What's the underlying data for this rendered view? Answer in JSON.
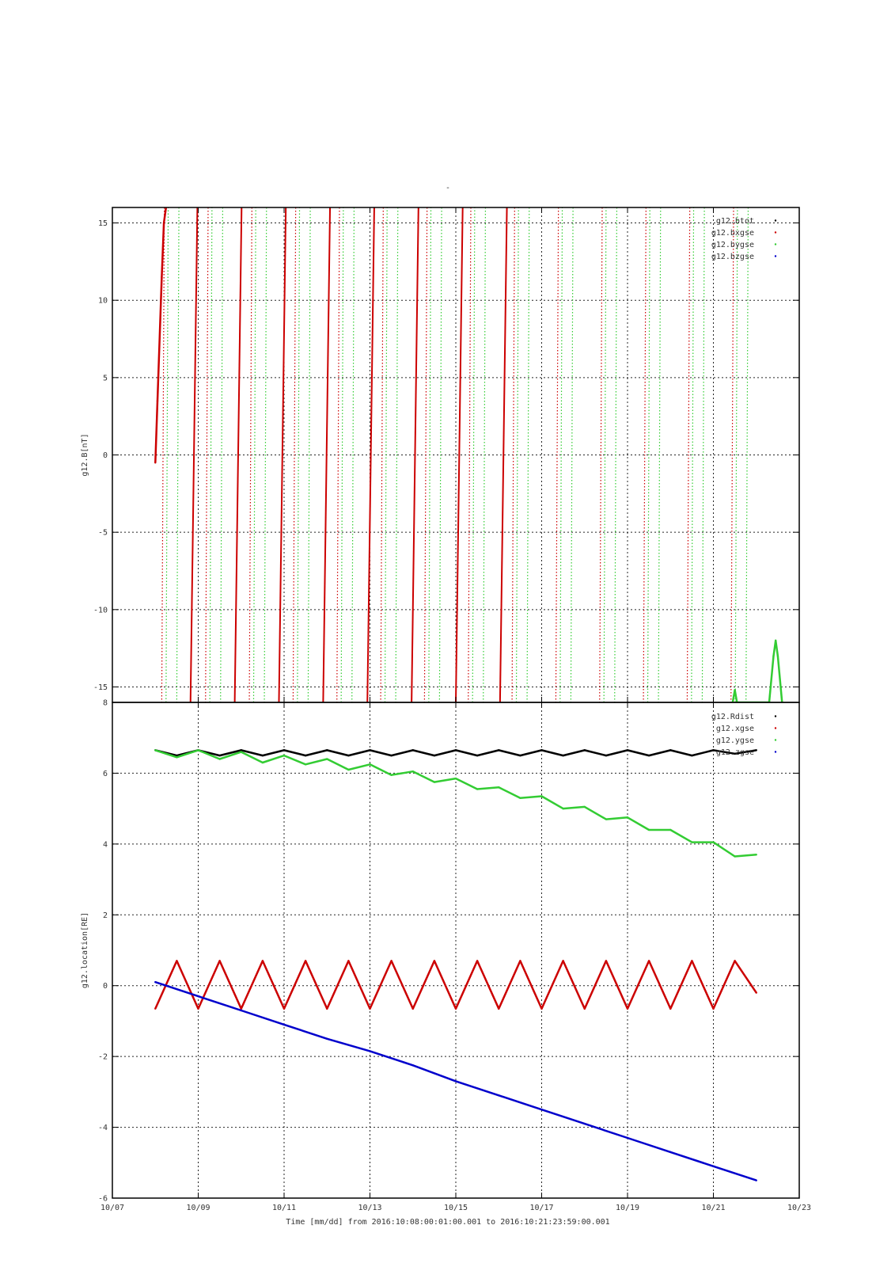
{
  "figure": {
    "top_title": "-",
    "time_label": "Time [mm/dd]  from 2016:10:08:00:01:00.001  to  2016:10:21:23:59:00.001",
    "x_ticks": [
      "10/07",
      "10/09",
      "10/11",
      "10/13",
      "10/15",
      "10/17",
      "10/19",
      "10/21",
      "10/23"
    ]
  },
  "chart_data": [
    {
      "type": "scatter",
      "title": "",
      "ylabel": "g12.B[nT]",
      "xlabel": "",
      "x_unit": "days since 2016-10-07",
      "xlim": [
        0,
        16
      ],
      "ylim": [
        -16,
        16
      ],
      "y_ticks": [
        "15",
        "10",
        "5",
        "0",
        "-5",
        "-10",
        "-15"
      ],
      "y_tick_values": [
        15,
        10,
        5,
        0,
        -5,
        -10,
        -15
      ],
      "grid": true,
      "legend_placement": "top-right",
      "series": [
        {
          "name": "g12.btot",
          "color": "#000000",
          "wraps": false,
          "x": [],
          "y": []
        },
        {
          "name": "g12.bxgse",
          "color": "#cc0000",
          "wraps": true,
          "dotted": false,
          "x": [
            1.0,
            1.05,
            1.1,
            1.15,
            1.2,
            1.25
          ],
          "y": [
            -0.5,
            3.5,
            7.5,
            11.5,
            15.0,
            16.0
          ]
        },
        {
          "name": "g12.bygse",
          "color": "#33cc33",
          "wraps": true,
          "x": [
            14.45,
            14.5,
            14.55,
            15.3,
            15.4,
            15.45,
            15.5,
            15.6
          ],
          "y": [
            -16.0,
            -15.2,
            -16.0,
            -16.0,
            -13.0,
            -12.0,
            -13.0,
            -16.0
          ]
        },
        {
          "name": "g12.bzgse",
          "color": "#0000cc",
          "wraps": false,
          "x": [],
          "y": []
        }
      ]
    },
    {
      "type": "line",
      "title": "",
      "ylabel": "g12.location[RE]",
      "xlabel": "Time [mm/dd]  from 2016:10:08:00:01:00.001  to  2016:10:21:23:59:00.001",
      "x_unit": "days since 2016-10-07",
      "xlim": [
        0,
        16
      ],
      "ylim": [
        -6,
        8
      ],
      "y_ticks": [
        "8",
        "6",
        "4",
        "2",
        "0",
        "-2",
        "-4",
        "-6"
      ],
      "y_tick_values": [
        8,
        6,
        4,
        2,
        0,
        -2,
        -4,
        -6
      ],
      "grid": true,
      "legend_placement": "top-right",
      "series": [
        {
          "name": "g12.Rdist",
          "color": "#000000",
          "x": [
            1.0,
            1.5,
            2.0,
            2.5,
            3.0,
            3.5,
            4.0,
            4.5,
            5.0,
            5.5,
            6.0,
            6.5,
            7.0,
            7.5,
            8.0,
            8.5,
            9.0,
            9.5,
            10.0,
            10.5,
            11.0,
            11.5,
            12.0,
            12.5,
            13.0,
            13.5,
            14.0,
            14.5,
            15.0
          ],
          "y": [
            6.65,
            6.5,
            6.65,
            6.5,
            6.65,
            6.5,
            6.65,
            6.5,
            6.65,
            6.5,
            6.65,
            6.5,
            6.65,
            6.5,
            6.65,
            6.5,
            6.65,
            6.5,
            6.65,
            6.5,
            6.65,
            6.5,
            6.65,
            6.5,
            6.65,
            6.5,
            6.65,
            6.55,
            6.65
          ]
        },
        {
          "name": "g12.xgse",
          "color": "#cc0000",
          "x": [
            1.0,
            1.5,
            2.0,
            2.5,
            3.0,
            3.5,
            4.0,
            4.5,
            5.0,
            5.5,
            6.0,
            6.5,
            7.0,
            7.5,
            8.0,
            8.5,
            9.0,
            9.5,
            10.0,
            10.5,
            11.0,
            11.5,
            12.0,
            12.5,
            13.0,
            13.5,
            14.0,
            14.5,
            15.0
          ],
          "y": [
            -0.65,
            0.7,
            -0.65,
            0.7,
            -0.65,
            0.7,
            -0.65,
            0.7,
            -0.65,
            0.7,
            -0.65,
            0.7,
            -0.65,
            0.7,
            -0.65,
            0.7,
            -0.65,
            0.7,
            -0.65,
            0.7,
            -0.65,
            0.7,
            -0.65,
            0.7,
            -0.65,
            0.7,
            -0.65,
            0.7,
            -0.2
          ]
        },
        {
          "name": "g12.ygse",
          "color": "#33cc33",
          "x": [
            1.0,
            1.5,
            2.0,
            2.5,
            3.0,
            3.5,
            4.0,
            4.5,
            5.0,
            5.5,
            6.0,
            6.5,
            7.0,
            7.5,
            8.0,
            8.5,
            9.0,
            9.5,
            10.0,
            10.5,
            11.0,
            11.5,
            12.0,
            12.5,
            13.0,
            13.5,
            14.0,
            14.5,
            15.0
          ],
          "y": [
            6.65,
            6.45,
            6.65,
            6.4,
            6.6,
            6.3,
            6.5,
            6.25,
            6.4,
            6.1,
            6.25,
            5.95,
            6.05,
            5.75,
            5.85,
            5.55,
            5.6,
            5.3,
            5.35,
            5.0,
            5.05,
            4.7,
            4.75,
            4.4,
            4.4,
            4.05,
            4.05,
            3.65,
            3.7
          ]
        },
        {
          "name": "g12.zgse",
          "color": "#0000cc",
          "x": [
            1.0,
            2.0,
            3.0,
            4.0,
            5.0,
            6.0,
            7.0,
            8.0,
            9.0,
            10.0,
            11.0,
            12.0,
            13.0,
            14.0,
            15.0
          ],
          "y": [
            0.1,
            -0.3,
            -0.7,
            -1.1,
            -1.5,
            -1.85,
            -2.25,
            -2.7,
            -3.1,
            -3.5,
            -3.9,
            -4.3,
            -4.7,
            -5.1,
            -5.5
          ]
        }
      ]
    }
  ]
}
